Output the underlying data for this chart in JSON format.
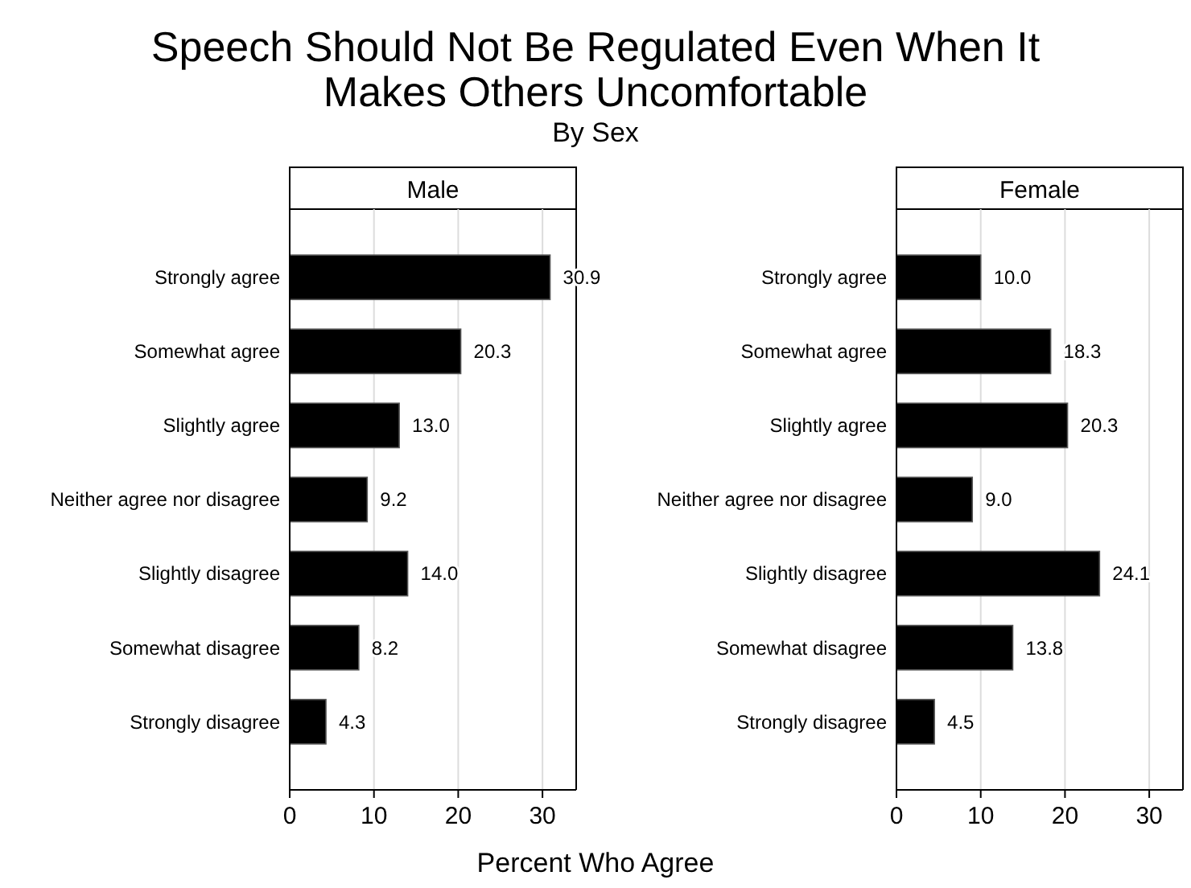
{
  "chart_data": [
    {
      "type": "other",
      "title": "Speech Should Not Be Regulated Even When It\nMakes Others Uncomfortable",
      "subtitle": "By Sex",
      "xlabel": "Percent Who Agree"
    },
    {
      "type": "bar",
      "orientation": "horizontal",
      "title": "Male",
      "categories": [
        "Strongly agree",
        "Somewhat agree",
        "Slightly agree",
        "Neither agree nor disagree",
        "Slightly disagree",
        "Somewhat disagree",
        "Strongly disagree"
      ],
      "values": [
        30.9,
        20.3,
        13.0,
        9.2,
        14.0,
        8.2,
        4.3
      ],
      "value_labels": [
        "30.9",
        "20.3",
        "13.0",
        "9.2",
        "14.0",
        "8.2",
        "4.3"
      ],
      "color": "#000000",
      "xlim": [
        0,
        34
      ],
      "xticks": [
        0,
        10,
        20,
        30
      ],
      "grid": "x"
    },
    {
      "type": "bar",
      "orientation": "horizontal",
      "title": "Female",
      "categories": [
        "Strongly agree",
        "Somewhat agree",
        "Slightly agree",
        "Neither agree nor disagree",
        "Slightly disagree",
        "Somewhat disagree",
        "Strongly disagree"
      ],
      "values": [
        10.0,
        18.3,
        20.3,
        9.0,
        24.1,
        13.8,
        4.5
      ],
      "value_labels": [
        "10.0",
        "18.3",
        "20.3",
        "9.0",
        "24.1",
        "13.8",
        "4.5"
      ],
      "color": "#000000",
      "xlim": [
        0,
        34
      ],
      "xticks": [
        0,
        10,
        20,
        30
      ],
      "grid": "x"
    }
  ]
}
